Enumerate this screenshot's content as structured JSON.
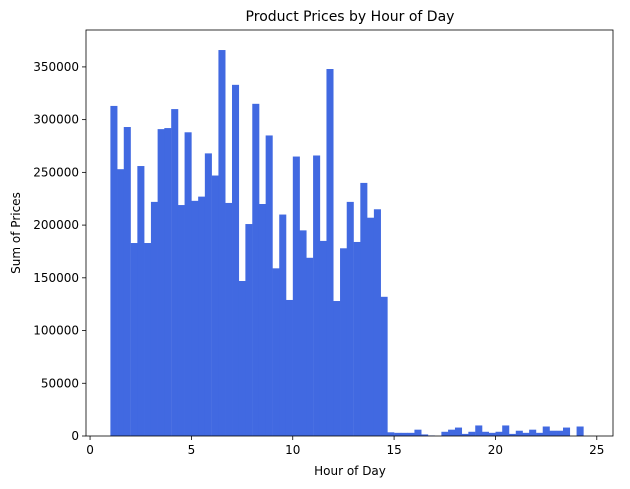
{
  "chart_data": {
    "type": "bar",
    "title": "Product Prices by Hour of Day",
    "xlabel": "Hour of Day",
    "ylabel": "Sum of Prices",
    "xlim": [
      -0.2,
      25.8
    ],
    "ylim": [
      0,
      385000
    ],
    "xticks": [
      0,
      5,
      10,
      15,
      20,
      25
    ],
    "xtick_labels": [
      "0",
      "5",
      "10",
      "15",
      "20",
      "25"
    ],
    "yticks": [
      0,
      50000,
      100000,
      150000,
      200000,
      250000,
      300000,
      350000
    ],
    "ytick_labels": [
      "0",
      "50000",
      "100000",
      "150000",
      "200000",
      "250000",
      "300000",
      "350000"
    ],
    "bar_color": "#4169e1",
    "bin_start": 1,
    "bin_end": 25,
    "x": [
      1.17,
      1.5,
      1.83,
      2.17,
      2.5,
      2.83,
      3.17,
      3.5,
      3.83,
      4.17,
      4.5,
      4.83,
      5.17,
      5.5,
      5.83,
      6.17,
      6.5,
      6.83,
      7.17,
      7.5,
      7.83,
      8.17,
      8.5,
      8.83,
      9.17,
      9.5,
      9.83,
      10.17,
      10.5,
      10.83,
      11.17,
      11.5,
      11.83,
      12.17,
      12.5,
      12.83,
      13.17,
      13.5,
      13.83,
      14.17,
      14.5,
      14.83,
      15.17,
      15.5,
      15.83,
      16.17,
      16.5,
      16.83,
      17.17,
      17.5,
      17.83,
      18.17,
      18.5,
      18.83,
      19.17,
      19.5,
      19.83,
      20.17,
      20.5,
      20.83,
      21.17,
      21.5,
      21.83,
      22.17,
      22.5,
      22.83,
      23.17,
      23.5,
      23.83,
      24.17,
      24.5,
      24.83
    ],
    "values": [
      313000,
      253000,
      293000,
      183000,
      256000,
      183000,
      222000,
      291000,
      292000,
      310000,
      219000,
      288000,
      223000,
      227000,
      268000,
      247000,
      366000,
      221000,
      333000,
      147000,
      201000,
      315000,
      220000,
      285000,
      159000,
      210000,
      129000,
      265000,
      195000,
      169000,
      266000,
      185000,
      348000,
      128000,
      178000,
      222000,
      184000,
      240000,
      207000,
      215000,
      132000,
      3500,
      3000,
      3000,
      3000,
      6000,
      1500,
      500,
      0,
      4000,
      6000,
      8000,
      2000,
      4000,
      10000,
      4000,
      3000,
      4000,
      10000,
      2000,
      5000,
      3000,
      6000,
      3000,
      9000,
      5000,
      5000,
      8000,
      0,
      9000,
      0,
      0
    ]
  }
}
